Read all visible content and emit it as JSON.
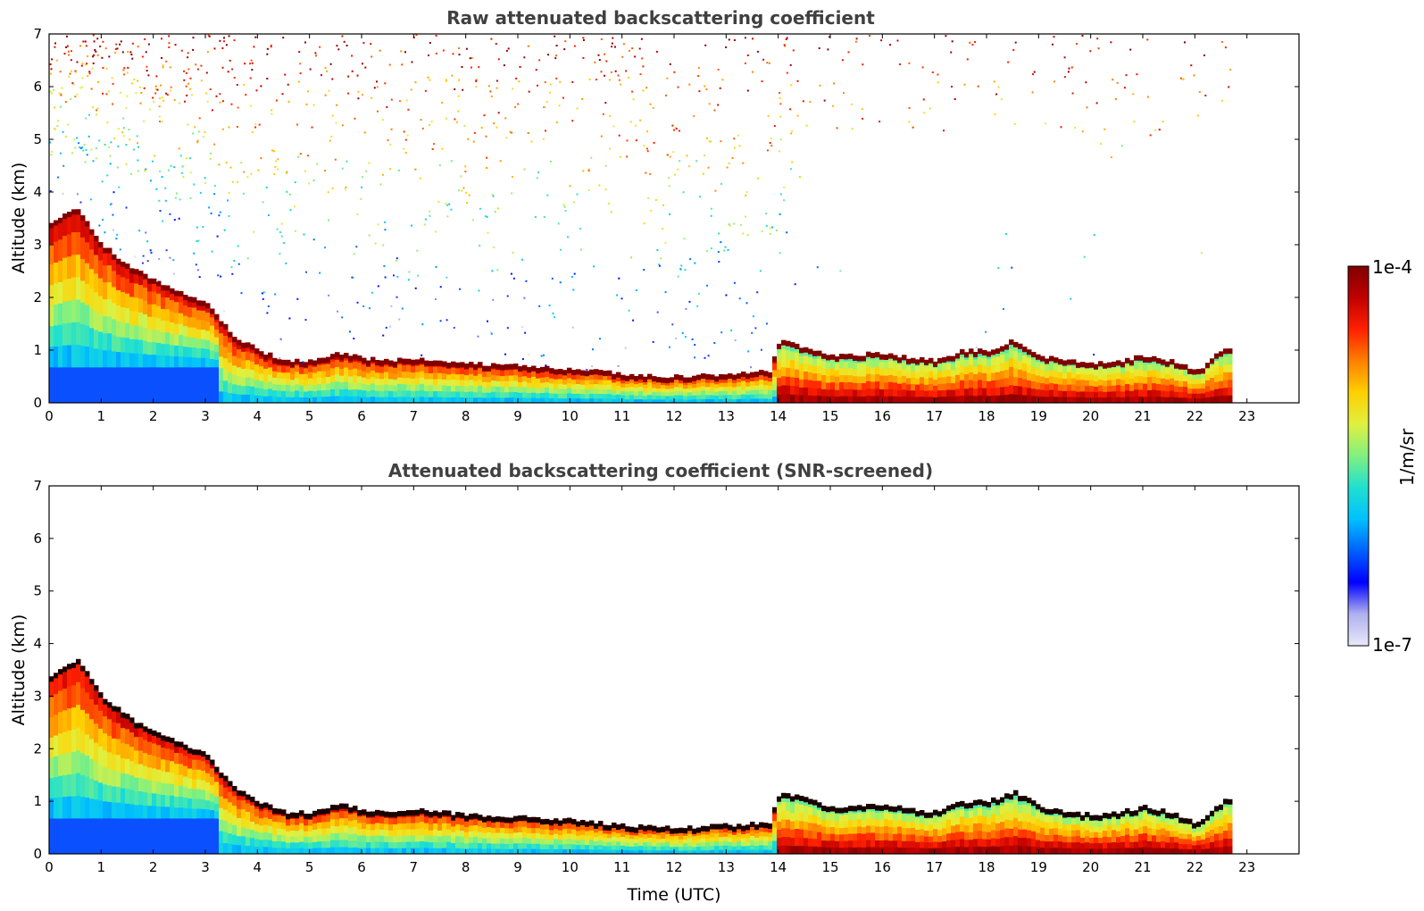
{
  "chart_data": [
    {
      "type": "heatmap",
      "title": "Raw attenuated backscattering coefficient",
      "xlabel": "",
      "ylabel": "Altitude (km)",
      "xlim": [
        0,
        24
      ],
      "ylim": [
        0,
        7
      ],
      "x_ticks": [
        "0",
        "1",
        "2",
        "3",
        "4",
        "5",
        "6",
        "7",
        "8",
        "9",
        "10",
        "11",
        "12",
        "13",
        "14",
        "15",
        "16",
        "17",
        "18",
        "19",
        "20",
        "21",
        "22",
        "23"
      ],
      "y_ticks": [
        "0",
        "1",
        "2",
        "3",
        "4",
        "5",
        "6",
        "7"
      ],
      "data_end_hour": 22.7,
      "layer_top_km": [
        [
          0,
          3.4
        ],
        [
          0.5,
          3.7
        ],
        [
          1,
          3.0
        ],
        [
          1.5,
          2.6
        ],
        [
          2,
          2.3
        ],
        [
          2.5,
          2.1
        ],
        [
          3,
          1.9
        ],
        [
          3.3,
          1.5
        ],
        [
          3.6,
          1.2
        ],
        [
          4,
          1.0
        ],
        [
          4.5,
          0.8
        ],
        [
          5,
          0.8
        ],
        [
          5.5,
          0.95
        ],
        [
          6,
          0.85
        ],
        [
          6.5,
          0.8
        ],
        [
          7,
          0.85
        ],
        [
          7.5,
          0.8
        ],
        [
          8,
          0.75
        ],
        [
          9,
          0.7
        ],
        [
          10,
          0.65
        ],
        [
          10.5,
          0.6
        ],
        [
          11,
          0.55
        ],
        [
          12,
          0.5
        ],
        [
          13,
          0.55
        ],
        [
          13.8,
          0.6
        ],
        [
          14,
          1.2
        ],
        [
          15,
          0.9
        ],
        [
          16,
          0.95
        ],
        [
          16.5,
          0.85
        ],
        [
          17,
          0.8
        ],
        [
          17.5,
          1.0
        ],
        [
          18,
          1.0
        ],
        [
          18.5,
          1.2
        ],
        [
          19,
          0.9
        ],
        [
          19.5,
          0.8
        ],
        [
          20,
          0.75
        ],
        [
          20.5,
          0.8
        ],
        [
          21,
          0.9
        ],
        [
          21.5,
          0.8
        ],
        [
          22,
          0.6
        ],
        [
          22.5,
          1.0
        ],
        [
          22.7,
          1.1
        ]
      ],
      "noise_top_km": 7,
      "colorbar": {
        "min_label": "1e-7",
        "max_label": "1e-4",
        "unit": "1/m/sr"
      }
    },
    {
      "type": "heatmap",
      "title": "Attenuated backscattering coefficient (SNR-screened)",
      "xlabel": "Time (UTC)",
      "ylabel": "Altitude (km)",
      "xlim": [
        0,
        24
      ],
      "ylim": [
        0,
        7
      ],
      "x_ticks": [
        "0",
        "1",
        "2",
        "3",
        "4",
        "5",
        "6",
        "7",
        "8",
        "9",
        "10",
        "11",
        "12",
        "13",
        "14",
        "15",
        "16",
        "17",
        "18",
        "19",
        "20",
        "21",
        "22",
        "23"
      ],
      "y_ticks": [
        "0",
        "1",
        "2",
        "3",
        "4",
        "5",
        "6",
        "7"
      ],
      "data_end_hour": 22.7,
      "layer_top_km": [
        [
          0,
          3.4
        ],
        [
          0.5,
          3.7
        ],
        [
          1,
          3.0
        ],
        [
          1.5,
          2.6
        ],
        [
          2,
          2.3
        ],
        [
          2.5,
          2.1
        ],
        [
          3,
          1.9
        ],
        [
          3.3,
          1.5
        ],
        [
          3.6,
          1.2
        ],
        [
          4,
          1.0
        ],
        [
          4.5,
          0.8
        ],
        [
          5,
          0.8
        ],
        [
          5.5,
          0.95
        ],
        [
          6,
          0.85
        ],
        [
          6.5,
          0.8
        ],
        [
          7,
          0.85
        ],
        [
          7.5,
          0.8
        ],
        [
          8,
          0.75
        ],
        [
          9,
          0.7
        ],
        [
          10,
          0.65
        ],
        [
          10.5,
          0.6
        ],
        [
          11,
          0.55
        ],
        [
          12,
          0.5
        ],
        [
          13,
          0.55
        ],
        [
          13.8,
          0.6
        ],
        [
          14,
          1.2
        ],
        [
          15,
          0.9
        ],
        [
          16,
          0.95
        ],
        [
          16.5,
          0.85
        ],
        [
          17,
          0.8
        ],
        [
          17.5,
          1.0
        ],
        [
          18,
          1.0
        ],
        [
          18.5,
          1.2
        ],
        [
          19,
          0.9
        ],
        [
          19.5,
          0.8
        ],
        [
          20,
          0.75
        ],
        [
          20.5,
          0.8
        ],
        [
          21,
          0.9
        ],
        [
          21.5,
          0.8
        ],
        [
          22,
          0.6
        ],
        [
          22.5,
          1.0
        ],
        [
          22.7,
          1.1
        ]
      ],
      "noise_top_km": 0,
      "colorbar": {
        "min_label": "1e-7",
        "max_label": "1e-4",
        "unit": "1/m/sr"
      }
    }
  ],
  "colorbar": {
    "min_label": "1e-7",
    "max_label": "1e-4",
    "unit": "1/m/sr",
    "colors": [
      "#e8e8f8",
      "#b0b0f0",
      "#0000ff",
      "#0060ff",
      "#00c0ff",
      "#20e0d0",
      "#80f080",
      "#e0f040",
      "#ffd000",
      "#ff8000",
      "#ff2000",
      "#c00000",
      "#800000"
    ]
  }
}
